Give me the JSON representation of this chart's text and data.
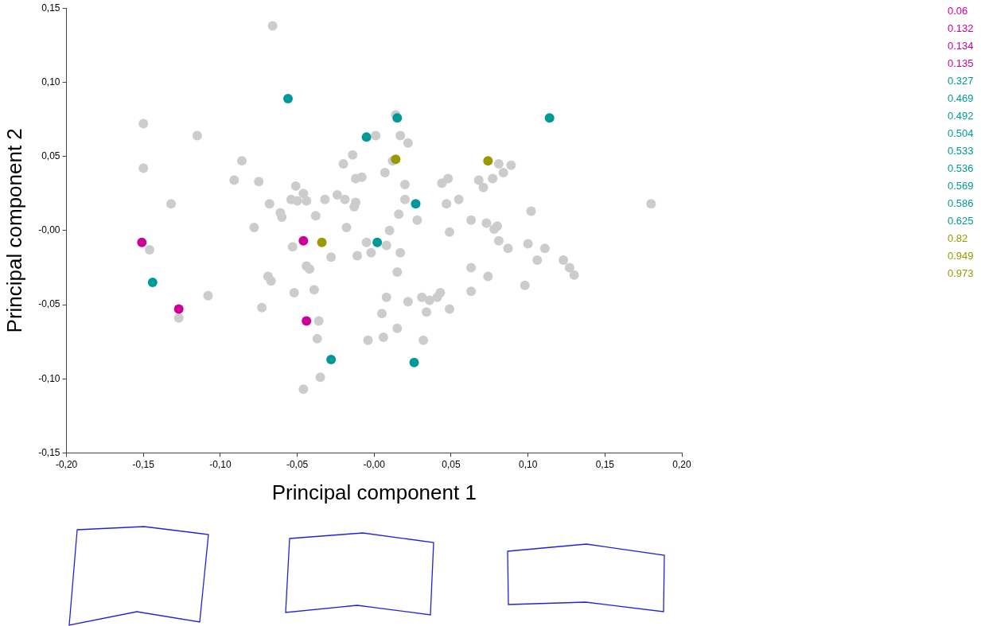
{
  "chart_data": {
    "type": "scatter",
    "xlabel": "Principal component 1",
    "ylabel": "Principal component 2",
    "marker": "circle",
    "xlim": [
      -0.2,
      0.2
    ],
    "ylim": [
      -0.15,
      0.15
    ],
    "xticks": [
      {
        "value": -0.2,
        "label": "-0,20"
      },
      {
        "value": -0.15,
        "label": "-0,15"
      },
      {
        "value": -0.1,
        "label": "-0,10"
      },
      {
        "value": -0.05,
        "label": "-0,05"
      },
      {
        "value": 0,
        "label": "-0,00"
      },
      {
        "value": 0.05,
        "label": "0,05"
      },
      {
        "value": 0.1,
        "label": "0,10"
      },
      {
        "value": 0.15,
        "label": "0,15"
      },
      {
        "value": 0.2,
        "label": "0,20"
      }
    ],
    "yticks": [
      {
        "value": -0.15,
        "label": "-0,15"
      },
      {
        "value": -0.1,
        "label": "-0,10"
      },
      {
        "value": -0.05,
        "label": "-0,05"
      },
      {
        "value": 0,
        "label": "-0,00"
      },
      {
        "value": 0.05,
        "label": "0,05"
      },
      {
        "value": 0.1,
        "label": "0,10"
      },
      {
        "value": 0.15,
        "label": "0,15"
      }
    ],
    "series": [
      {
        "color": "#cccccc",
        "x": [
          -0.066,
          -0.15,
          -0.115,
          -0.014,
          -0.02,
          -0.15,
          -0.086,
          -0.091,
          -0.075,
          -0.012,
          -0.008,
          -0.051,
          -0.046,
          -0.054,
          -0.05,
          -0.044,
          -0.032,
          -0.024,
          -0.019,
          -0.012,
          -0.013,
          -0.132,
          -0.068,
          -0.061,
          -0.06,
          -0.038,
          -0.078,
          -0.018,
          0.001,
          0.014,
          0.017,
          0.022,
          0.012,
          0.081,
          0.089,
          0.084,
          0.077,
          0.068,
          0.071,
          0.007,
          0.02,
          0.044,
          0.048,
          0.02,
          0.047,
          0.055,
          0.102,
          0.18,
          0.016,
          0.028,
          0.063,
          0.073,
          0.08,
          0.078,
          0.01,
          0.049,
          -0.146,
          -0.053,
          -0.028,
          -0.005,
          -0.011,
          -0.002,
          -0.044,
          -0.042,
          -0.069,
          -0.067,
          -0.052,
          -0.039,
          -0.108,
          -0.073,
          -0.127,
          -0.036,
          -0.037,
          -0.004,
          -0.035,
          -0.046,
          0.008,
          0.017,
          0.015,
          0.081,
          0.087,
          0.1,
          0.111,
          0.106,
          0.123,
          0.127,
          0.13,
          0.063,
          0.074,
          0.098,
          0.063,
          0.008,
          0.022,
          0.031,
          0.036,
          0.041,
          0.043,
          0.034,
          0.049,
          0.005,
          0.015,
          0.006,
          0.032
        ],
        "values": [
          0.138,
          0.072,
          0.064,
          0.051,
          0.045,
          0.042,
          0.047,
          0.034,
          0.033,
          0.035,
          0.036,
          0.03,
          0.025,
          0.021,
          0.02,
          0.02,
          0.021,
          0.024,
          0.021,
          0.019,
          0.016,
          0.018,
          0.018,
          0.012,
          0.009,
          0.01,
          0.002,
          0.002,
          0.064,
          0.078,
          0.064,
          0.059,
          0.047,
          0.045,
          0.044,
          0.039,
          0.035,
          0.034,
          0.029,
          0.039,
          0.031,
          0.032,
          0.035,
          0.021,
          0.018,
          0.021,
          0.013,
          0.018,
          0.011,
          0.007,
          0.007,
          0.005,
          0.003,
          0.001,
          0.0,
          -0.001,
          -0.013,
          -0.011,
          -0.018,
          -0.008,
          -0.017,
          -0.015,
          -0.024,
          -0.026,
          -0.031,
          -0.034,
          -0.042,
          -0.04,
          -0.044,
          -0.052,
          -0.059,
          -0.061,
          -0.073,
          -0.074,
          -0.099,
          -0.107,
          -0.01,
          -0.015,
          -0.028,
          -0.007,
          -0.012,
          -0.009,
          -0.012,
          -0.02,
          -0.02,
          -0.025,
          -0.03,
          -0.025,
          -0.031,
          -0.037,
          -0.041,
          -0.045,
          -0.048,
          -0.045,
          -0.047,
          -0.045,
          -0.042,
          -0.055,
          -0.053,
          -0.056,
          -0.066,
          -0.072,
          -0.074
        ]
      },
      {
        "colors": [
          "#cc0099",
          "#cc0099",
          "#cc0099",
          "#cc0099",
          "#009999",
          "#009999",
          "#009999",
          "#009999",
          "#009999",
          "#009999",
          "#009999",
          "#009999",
          "#009999",
          "#999900",
          "#999900",
          "#999900"
        ],
        "x": [
          -0.151,
          -0.127,
          -0.046,
          -0.044,
          -0.056,
          -0.005,
          0.015,
          0.114,
          0.027,
          0.002,
          -0.144,
          -0.028,
          0.026,
          0.014,
          0.074,
          -0.034
        ],
        "values": [
          -0.008,
          -0.053,
          -0.007,
          -0.061,
          0.089,
          0.063,
          0.076,
          0.076,
          0.018,
          -0.008,
          -0.035,
          -0.087,
          -0.089,
          0.048,
          0.047,
          -0.008
        ]
      }
    ],
    "annotations": [
      "0.06",
      "0.132",
      "0.134",
      "0.135",
      "0.327",
      "0.469",
      "0.492",
      "0.504",
      "0.533",
      "0.536",
      "0.569",
      "0.586",
      "0.625",
      "0.82",
      "0.949",
      "0.973"
    ]
  }
}
